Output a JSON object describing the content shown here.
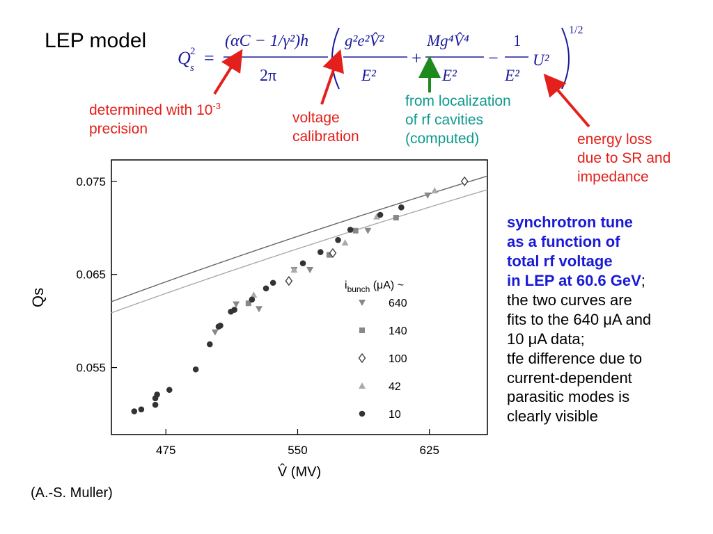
{
  "slide": {
    "title": "LEP model",
    "credit": "(A.-S. Muller)"
  },
  "formula": {
    "lhs_base": "Q",
    "lhs_sub": "s",
    "lhs_sup": "2",
    "equals": "=",
    "prefactor_numerator": "(αC − 1/γ²)h",
    "prefactor_denominator": "2π",
    "term1_numerator": "g²e²V̂²",
    "term1_denominator": "E²",
    "plus": "+",
    "term2_numerator": "Mg⁴V̂⁴",
    "term2_denominator": "E²",
    "minus": "−",
    "term3_numerator": "1",
    "term3_denominator": "E²",
    "term3_factor": "U²",
    "exponent": "1/2"
  },
  "annotations": {
    "alpha_c": {
      "line1": "determined with 10",
      "sup": "-3",
      "line2": "precision"
    },
    "voltage": {
      "line1": "voltage",
      "line2": "calibration"
    },
    "localization": {
      "line1": "from localization",
      "line2": "of rf cavities",
      "line3": "(computed)"
    },
    "energy_loss": {
      "line1": "energy loss",
      "line2": "due to SR and",
      "line3": "impedance"
    }
  },
  "description": {
    "bold_line1": "synchrotron tune",
    "bold_line2": "as a function of",
    "bold_line3": "total rf voltage",
    "bold_line4": "in LEP at 60.6 GeV",
    "semicolon": ";",
    "line5": "the two curves are",
    "line6a": "fits to the 640 ",
    "mu1": "μ",
    "line6b": "A and",
    "line7a": "10 ",
    "mu2": "μ",
    "line7b": "A data;",
    "line8": "tfe difference due to",
    "line9": "current-dependent",
    "line10": "parasitic modes is",
    "line11": "clearly visible"
  },
  "colors": {
    "arrow_red": "#e3201b",
    "arrow_green": "#1e8a1e",
    "text_blue": "#1a1ad6",
    "text_teal": "#0f9a8e",
    "formula_blue": "#1a1a9e"
  },
  "chart_data": {
    "type": "scatter",
    "title": "",
    "xlabel": "V̂ (MV)",
    "ylabel": "Qs",
    "xlim": [
      444,
      658
    ],
    "ylim": [
      0.0478,
      0.0773
    ],
    "xticks": [
      "475",
      "550",
      "625"
    ],
    "xtick_values": [
      475,
      550,
      625
    ],
    "yticks": [
      "0.075",
      "0.065",
      "0.055"
    ],
    "ytick_values": [
      0.075,
      0.065,
      0.055
    ],
    "legend_title": "i",
    "legend_title_sub": "bunch",
    "legend_title_unit": " (μA) ~",
    "legend_placement": "lower-right",
    "series": [
      {
        "name": "640",
        "marker": "triangle-down",
        "color": "#888888",
        "points": [
          [
            503,
            0.0588
          ],
          [
            515,
            0.0618
          ],
          [
            528,
            0.0613
          ],
          [
            548,
            0.0655
          ],
          [
            557,
            0.0655
          ],
          [
            590,
            0.0697
          ],
          [
            624,
            0.0735
          ]
        ]
      },
      {
        "name": "140",
        "marker": "square",
        "color": "#888888",
        "points": [
          [
            522,
            0.0619
          ],
          [
            568,
            0.0671
          ],
          [
            583,
            0.0697
          ],
          [
            606,
            0.0711
          ]
        ]
      },
      {
        "name": "100",
        "marker": "diamond-open",
        "color": "#333333",
        "points": [
          [
            545,
            0.0643
          ],
          [
            570,
            0.0673
          ],
          [
            645,
            0.075
          ]
        ]
      },
      {
        "name": "42",
        "marker": "triangle-up",
        "color": "#aaaaaa",
        "points": [
          [
            525,
            0.0628
          ],
          [
            548,
            0.0655
          ],
          [
            577,
            0.0684
          ],
          [
            595,
            0.0712
          ],
          [
            628,
            0.074
          ]
        ]
      },
      {
        "name": "10",
        "marker": "circle",
        "color": "#333333",
        "points": [
          [
            457,
            0.0503
          ],
          [
            461,
            0.0505
          ],
          [
            469,
            0.051
          ],
          [
            469,
            0.0517
          ],
          [
            470,
            0.0521
          ],
          [
            477,
            0.0526
          ],
          [
            492,
            0.0548
          ],
          [
            500,
            0.0575
          ],
          [
            506,
            0.0595
          ],
          [
            505,
            0.0594
          ],
          [
            512,
            0.061
          ],
          [
            514,
            0.0612
          ],
          [
            524,
            0.0623
          ],
          [
            532,
            0.0635
          ],
          [
            536,
            0.0641
          ],
          [
            553,
            0.0662
          ],
          [
            563,
            0.0674
          ],
          [
            573,
            0.0687
          ],
          [
            580,
            0.0698
          ],
          [
            597,
            0.0714
          ],
          [
            609,
            0.0722
          ]
        ]
      }
    ],
    "fits": [
      {
        "name": "10 μA fit",
        "color": "#666666",
        "q_per_sqrt_v": 0.002946
      },
      {
        "name": "640 μA fit",
        "color": "#aaaaaa",
        "q_per_sqrt_v": 0.002889
      }
    ]
  }
}
